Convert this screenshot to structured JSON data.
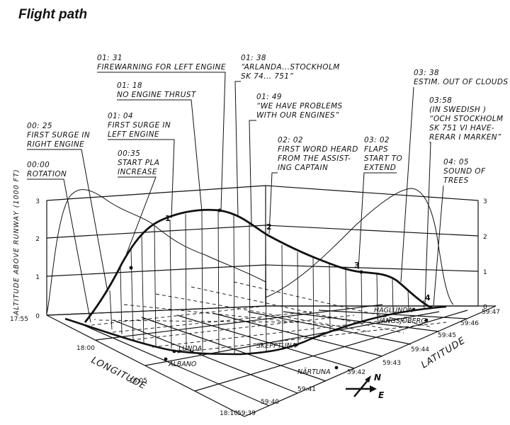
{
  "title": "Flight path",
  "annotations": [
    {
      "id": "a0000",
      "lines": [
        "00:00",
        "ROTATION"
      ]
    },
    {
      "id": "a0025",
      "lines": [
        "00: 25",
        "FIRST SURGE IN",
        "RIGHT ENGINE"
      ]
    },
    {
      "id": "a0035",
      "lines": [
        "00:35",
        "START PLA",
        "INCREASE"
      ]
    },
    {
      "id": "a0104",
      "lines": [
        "01: 04",
        "FIRST SURGE IN",
        "LEFT ENGINE"
      ]
    },
    {
      "id": "a0118",
      "lines": [
        "01: 18",
        "NO ENGINE THRUST"
      ]
    },
    {
      "id": "a0131",
      "lines": [
        "01: 31",
        "FIREWARNING FOR LEFT ENGINE"
      ]
    },
    {
      "id": "a0138",
      "lines": [
        "01: 38",
        "“ARLANDA...STOCKHOLM",
        "SK 74... 751”"
      ]
    },
    {
      "id": "a0149",
      "lines": [
        "01: 49",
        "“WE HAVE PROBLEMS",
        "WITH OUR ENGINES”"
      ]
    },
    {
      "id": "a0202",
      "lines": [
        "02: 02",
        "FIRST WORD HEARD",
        "FROM THE ASSIST-",
        "ING CAPTAIN"
      ]
    },
    {
      "id": "a0302",
      "lines": [
        "03: 02",
        "FLAPS",
        "START TO",
        "EXTEND"
      ]
    },
    {
      "id": "a0338",
      "lines": [
        "03: 38",
        "ESTIM. OUT OF CLOUDS"
      ]
    },
    {
      "id": "a0358",
      "lines": [
        "03:58",
        "(IN SWEDISH )",
        "“OCH STOCKHOLM",
        "SK 751 VI HAVE-",
        "RERAR I MARKEN”"
      ]
    },
    {
      "id": "a0405",
      "lines": [
        "04: 05",
        "SOUND OF",
        "TREES"
      ]
    }
  ],
  "point_labels": [
    "1",
    "2",
    "3",
    "4"
  ],
  "y_axis": {
    "label": "ALTITUDE ABOVE RUNWAY (1000 FT)",
    "ticks": [
      "0",
      "1",
      "2",
      "3"
    ]
  },
  "longitude_axis": {
    "label": "LONGITUDE",
    "ticks": [
      "17:55",
      "18:00",
      "18:05",
      "18:10"
    ]
  },
  "latitude_axis": {
    "label": "LATITUDE",
    "ticks": [
      "59:39",
      "59:40",
      "59:41",
      "59:42",
      "59:43",
      "59:44",
      "59:45",
      "59:46",
      "59:47"
    ]
  },
  "places": [
    "LUNDA",
    "ALBANO",
    "SKEPPTUNA",
    "NÄRTUNA",
    "HAGLUNDA",
    "VÄNGSJÖBERG"
  ],
  "compass": {
    "north": "N",
    "east": "E"
  }
}
